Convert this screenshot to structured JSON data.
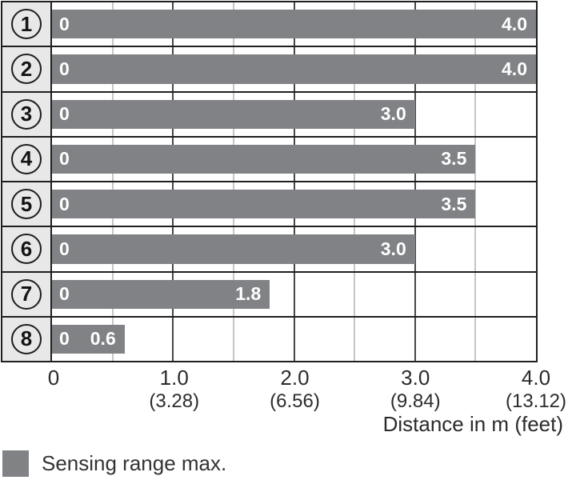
{
  "chart_data": {
    "type": "bar",
    "orientation": "horizontal",
    "title": "",
    "xlabel": "Distance in m (feet)",
    "xlim": [
      0,
      4.0
    ],
    "grid": {
      "major_every_m": 1.0,
      "minor_every_m": 0.5
    },
    "categories": [
      "1",
      "2",
      "3",
      "4",
      "5",
      "6",
      "7",
      "8"
    ],
    "values": [
      4.0,
      4.0,
      3.0,
      3.5,
      3.5,
      3.0,
      1.8,
      0.6
    ],
    "rows": [
      {
        "num": "1",
        "zero_label": "0",
        "value": 4.0,
        "value_label": "4.0"
      },
      {
        "num": "2",
        "zero_label": "0",
        "value": 4.0,
        "value_label": "4.0"
      },
      {
        "num": "3",
        "zero_label": "0",
        "value": 3.0,
        "value_label": "3.0"
      },
      {
        "num": "4",
        "zero_label": "0",
        "value": 3.5,
        "value_label": "3.5"
      },
      {
        "num": "5",
        "zero_label": "0",
        "value": 3.5,
        "value_label": "3.5"
      },
      {
        "num": "6",
        "zero_label": "0",
        "value": 3.0,
        "value_label": "3.0"
      },
      {
        "num": "7",
        "zero_label": "0",
        "value": 1.8,
        "value_label": "1.8"
      },
      {
        "num": "8",
        "zero_label": "0",
        "value": 0.6,
        "value_label": "0.6"
      }
    ],
    "x_ticks": [
      {
        "m": "0",
        "feet": ""
      },
      {
        "m": "1.0",
        "feet": "(3.28)"
      },
      {
        "m": "2.0",
        "feet": "(6.56)"
      },
      {
        "m": "3.0",
        "feet": "(9.84)"
      },
      {
        "m": "4.0",
        "feet": "(13.12)"
      }
    ],
    "legend": {
      "label": "Sensing range max.",
      "swatch_color": "#808285"
    },
    "colors": {
      "bar": "#808285",
      "label_column_bg": "#e8e8e9",
      "frame": "#1f1f1f",
      "grid_major": "#474747",
      "grid_minor": "#c6c6c8",
      "bar_text": "#ffffff",
      "axis_text": "#2b2b2b"
    }
  }
}
